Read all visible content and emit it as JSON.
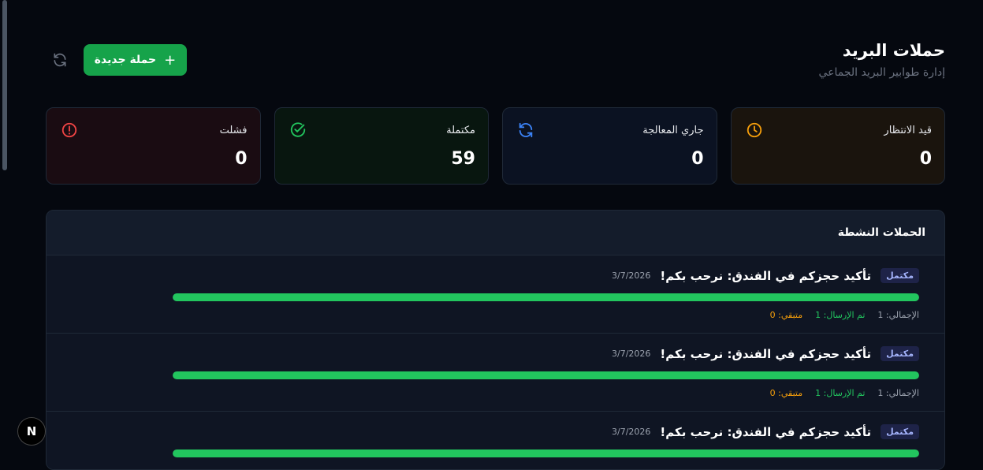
{
  "header": {
    "title": "حملات البريد",
    "subtitle": "إدارة طوابير البريد الجماعي",
    "new_button": "حملة جديدة",
    "new_icon": "plus-icon",
    "refresh_icon": "refresh-icon"
  },
  "stats": [
    {
      "label": "قيد الانتظار",
      "value": "0",
      "icon": "clock-icon",
      "color": "#f59e0b",
      "bg": "#1a140d"
    },
    {
      "label": "جاري المعالجة",
      "value": "0",
      "icon": "refresh-icon",
      "color": "#3b82f6",
      "bg": "#0b1222"
    },
    {
      "label": "مكتملة",
      "value": "59",
      "icon": "check-circle-icon",
      "color": "#22c55e",
      "bg": "#08160f"
    },
    {
      "label": "فشلت",
      "value": "0",
      "icon": "alert-circle-icon",
      "color": "#ef4444",
      "bg": "#1a0c12"
    }
  ],
  "panel": {
    "title": "الحملات النشطة"
  },
  "campaigns": [
    {
      "status": "مكتمل",
      "title": "تأكيد حجزكم في الفندق: نرحب بكم!",
      "date": "3/7/2026",
      "progress": 100,
      "total": "الإجمالي: 1",
      "sent": "تم الإرسال: 1",
      "remaining": "متبقي: 0"
    },
    {
      "status": "مكتمل",
      "title": "تأكيد حجزكم في الفندق: نرحب بكم!",
      "date": "3/7/2026",
      "progress": 100,
      "total": "الإجمالي: 1",
      "sent": "تم الإرسال: 1",
      "remaining": "متبقي: 0"
    },
    {
      "status": "مكتمل",
      "title": "تأكيد حجزكم في الفندق: نرحب بكم!",
      "date": "3/7/2026",
      "progress": 100,
      "total": "",
      "sent": "",
      "remaining": ""
    }
  ],
  "colors": {
    "accent": "#16a34a",
    "sent": "#22c55e",
    "remaining": "#f59e0b",
    "muted": "#9ca3af"
  },
  "dev_badge": "N"
}
